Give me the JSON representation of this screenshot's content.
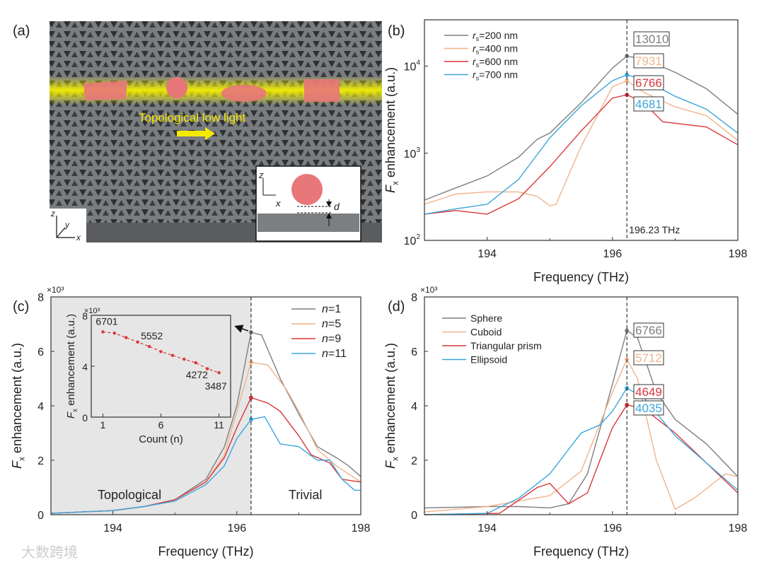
{
  "panel_labels": {
    "a": "(a)",
    "b": "(b)",
    "c": "(c)",
    "d": "(d)"
  },
  "panel_a": {
    "caption": "Topological low light",
    "axes": {
      "z": "z",
      "y": "y",
      "x": "x"
    },
    "inset_axes": {
      "z": "z",
      "x": "x",
      "d": "d"
    },
    "colors": {
      "slab": "#5f6266",
      "glow": "#f4f000",
      "particle": "#e8777a",
      "arrow": "#f4ea00"
    }
  },
  "watermark": "大数跨境",
  "chart_data": [
    {
      "id": "b",
      "type": "line",
      "yscale": "log",
      "xlabel": "Frequency (THz)",
      "ylabel_main": "F",
      "ylabel_sub": "x",
      "ylabel_rest": " enhancement (a.u.)",
      "xlim": [
        193,
        198
      ],
      "ylim": [
        100,
        34000
      ],
      "xticks": [
        194,
        196,
        198
      ],
      "yticks": [
        {
          "v": 100,
          "base": "10",
          "exp": "2"
        },
        {
          "v": 1000,
          "base": "10",
          "exp": "3"
        },
        {
          "v": 10000,
          "base": "10",
          "exp": "4"
        }
      ],
      "vline": {
        "x": 196.23,
        "label": "196.23 THz"
      },
      "series": [
        {
          "name": "r",
          "sub": "s",
          "rest": "=200 nm",
          "color": "#7f7f7f",
          "x": [
            193,
            193.5,
            194,
            194.5,
            194.8,
            195,
            195.5,
            196,
            196.23,
            196.5,
            197,
            197.5,
            198
          ],
          "y": [
            290,
            400,
            550,
            900,
            1450,
            1700,
            3800,
            9500,
            13010,
            12000,
            8500,
            5500,
            2800
          ],
          "peak": 13010
        },
        {
          "name": "r",
          "sub": "s",
          "rest": "=400 nm",
          "color": "#f0b48a",
          "x": [
            193,
            193.5,
            194,
            194.5,
            194.8,
            195,
            195.1,
            195.5,
            196,
            196.23,
            196.5,
            197,
            197.5,
            198
          ],
          "y": [
            260,
            340,
            360,
            360,
            320,
            250,
            260,
            1200,
            5800,
            6766,
            5000,
            3400,
            2700,
            1400
          ],
          "peak": 6766
        },
        {
          "name": "r",
          "sub": "s",
          "rest": "=600 nm",
          "color": "#d9363a",
          "x": [
            193,
            193.5,
            194,
            194.5,
            195,
            195.5,
            196,
            196.23,
            196.5,
            196.8,
            197.5,
            198
          ],
          "y": [
            200,
            220,
            200,
            300,
            700,
            1800,
            4300,
            4681,
            3800,
            2300,
            2000,
            1250
          ],
          "peak": 4681
        },
        {
          "name": "r",
          "sub": "s",
          "rest": "=700 nm",
          "color": "#3aa6dc",
          "x": [
            193,
            193.5,
            194,
            194.5,
            195,
            195.5,
            196,
            196.23,
            196.5,
            197,
            197.5,
            198
          ],
          "y": [
            200,
            230,
            260,
            500,
            1500,
            3500,
            6800,
            7931,
            7000,
            4500,
            3200,
            1700
          ],
          "peak": 7931
        }
      ],
      "annotations": [
        "13010",
        "7931",
        "6766",
        "4681"
      ]
    },
    {
      "id": "c",
      "type": "line",
      "xlabel": "Frequency (THz)",
      "ylabel_main": "F",
      "ylabel_sub": "x",
      "ylabel_rest": " enhancement (a.u.)",
      "multiplier": "×10³",
      "xlim": [
        193,
        198
      ],
      "ylim": [
        0,
        8
      ],
      "xticks": [
        194,
        196,
        198
      ],
      "yticks": [
        0,
        2,
        4,
        6,
        8
      ],
      "vline": {
        "x": 196.23
      },
      "regions": {
        "left": "Topological",
        "right": "Trivial"
      },
      "series": [
        {
          "name": "n",
          "rest": "=1",
          "color": "#7f7f7f",
          "x": [
            193,
            194,
            194.5,
            195,
            195.5,
            195.8,
            196,
            196.23,
            196.4,
            196.7,
            197,
            197.3,
            197.6,
            197.8,
            198
          ],
          "y": [
            0.05,
            0.15,
            0.3,
            0.55,
            1.3,
            2.5,
            4.0,
            6.7,
            6.6,
            5.0,
            3.7,
            2.5,
            2.1,
            1.8,
            1.4
          ]
        },
        {
          "name": "n",
          "rest": "=5",
          "color": "#f0b48a",
          "x": [
            193,
            194,
            194.5,
            195,
            195.5,
            195.8,
            196,
            196.23,
            196.5,
            196.8,
            197,
            197.3,
            197.6,
            198
          ],
          "y": [
            0.05,
            0.15,
            0.3,
            0.55,
            1.2,
            2.2,
            3.8,
            5.6,
            5.5,
            4.6,
            3.8,
            2.4,
            1.8,
            1.2
          ]
        },
        {
          "name": "n",
          "rest": "=9",
          "color": "#d9363a",
          "x": [
            193,
            194,
            194.5,
            195,
            195.5,
            195.8,
            196,
            196.23,
            196.5,
            196.7,
            197,
            197.2,
            197.5,
            197.7,
            198
          ],
          "y": [
            0.05,
            0.15,
            0.3,
            0.55,
            1.2,
            2.1,
            3.2,
            4.3,
            4.1,
            3.8,
            2.9,
            2.2,
            1.9,
            1.3,
            1.2
          ]
        },
        {
          "name": "n",
          "rest": "=11",
          "color": "#3aa6dc",
          "x": [
            193,
            194,
            194.5,
            195,
            195.5,
            195.8,
            196,
            196.23,
            196.45,
            196.7,
            197,
            197.3,
            197.5,
            197.7,
            197.9,
            198
          ],
          "y": [
            0.05,
            0.15,
            0.3,
            0.5,
            1.1,
            1.8,
            2.8,
            3.5,
            3.6,
            2.6,
            2.5,
            2.0,
            2.0,
            1.3,
            0.9,
            0.9
          ]
        }
      ],
      "inset": {
        "type": "scatter",
        "xlabel": "Count (n)",
        "ylabel_main": "F",
        "ylabel_sub": "x",
        "ylabel_rest": " enhancement (a.u.)",
        "multiplier": "×10³",
        "xlim": [
          0,
          12
        ],
        "ylim": [
          0,
          8
        ],
        "xticks": [
          1,
          6,
          11
        ],
        "yticks": [
          0,
          4,
          8
        ],
        "x": [
          1,
          2,
          3,
          4,
          5,
          6,
          7,
          8,
          9,
          10,
          11
        ],
        "y": [
          6.701,
          6.6,
          6.25,
          5.9,
          5.552,
          5.15,
          4.85,
          4.55,
          4.272,
          3.8,
          3.487
        ],
        "labels": [
          {
            "n": 1,
            "text": "6701"
          },
          {
            "n": 5,
            "text": "5552"
          },
          {
            "n": 9,
            "text": "4272"
          },
          {
            "n": 11,
            "text": "3487"
          }
        ],
        "color": "#d9363a"
      }
    },
    {
      "id": "d",
      "type": "line",
      "xlabel": "Frequency (THz)",
      "ylabel_main": "F",
      "ylabel_sub": "x",
      "ylabel_rest": " enhancement (a.u.)",
      "multiplier": "×10³",
      "xlim": [
        193,
        198
      ],
      "ylim": [
        0,
        8
      ],
      "xticks": [
        194,
        196,
        198
      ],
      "yticks": [
        0,
        2,
        4,
        6,
        8
      ],
      "vline": {
        "x": 196.23
      },
      "series": [
        {
          "name": "Sphere",
          "color": "#7f7f7f",
          "x": [
            193,
            194,
            194.5,
            195,
            195.3,
            195.6,
            196,
            196.23,
            196.4,
            196.7,
            197,
            197.5,
            198
          ],
          "y": [
            0.25,
            0.3,
            0.3,
            0.25,
            0.4,
            1.5,
            4.8,
            6.766,
            6.5,
            4.5,
            3.5,
            2.6,
            1.4
          ],
          "peak": 6.766
        },
        {
          "name": "Cuboid",
          "color": "#f0b48a",
          "x": [
            193,
            194,
            195,
            195.5,
            196,
            196.23,
            196.4,
            196.7,
            197,
            197.3,
            197.8,
            198
          ],
          "y": [
            0.1,
            0.3,
            0.7,
            1.6,
            4.5,
            5.712,
            5.0,
            2.0,
            0.2,
            0.6,
            1.5,
            1.4
          ],
          "peak": 5.712
        },
        {
          "name": "Triangular prism",
          "color": "#d9363a",
          "x": [
            193,
            194.2,
            194.8,
            195,
            195.3,
            195.6,
            196,
            196.23,
            196.5,
            197,
            197.5,
            198
          ],
          "y": [
            0,
            0.05,
            1.0,
            1.15,
            0.4,
            0.8,
            3.2,
            4.035,
            3.9,
            3.0,
            1.9,
            0.8
          ],
          "peak": 4.035
        },
        {
          "name": "Ellipsoid",
          "color": "#3aa6dc",
          "x": [
            193,
            194,
            194.5,
            195,
            195.5,
            195.8,
            196,
            196.23,
            196.5,
            197,
            197.5,
            198
          ],
          "y": [
            0,
            0.05,
            0.6,
            1.5,
            3.0,
            3.3,
            3.8,
            4.649,
            4.3,
            2.9,
            1.9,
            0.9
          ],
          "peak": 4.649
        }
      ],
      "annotations": [
        "6766",
        "5712",
        "4649",
        "4035"
      ]
    }
  ]
}
